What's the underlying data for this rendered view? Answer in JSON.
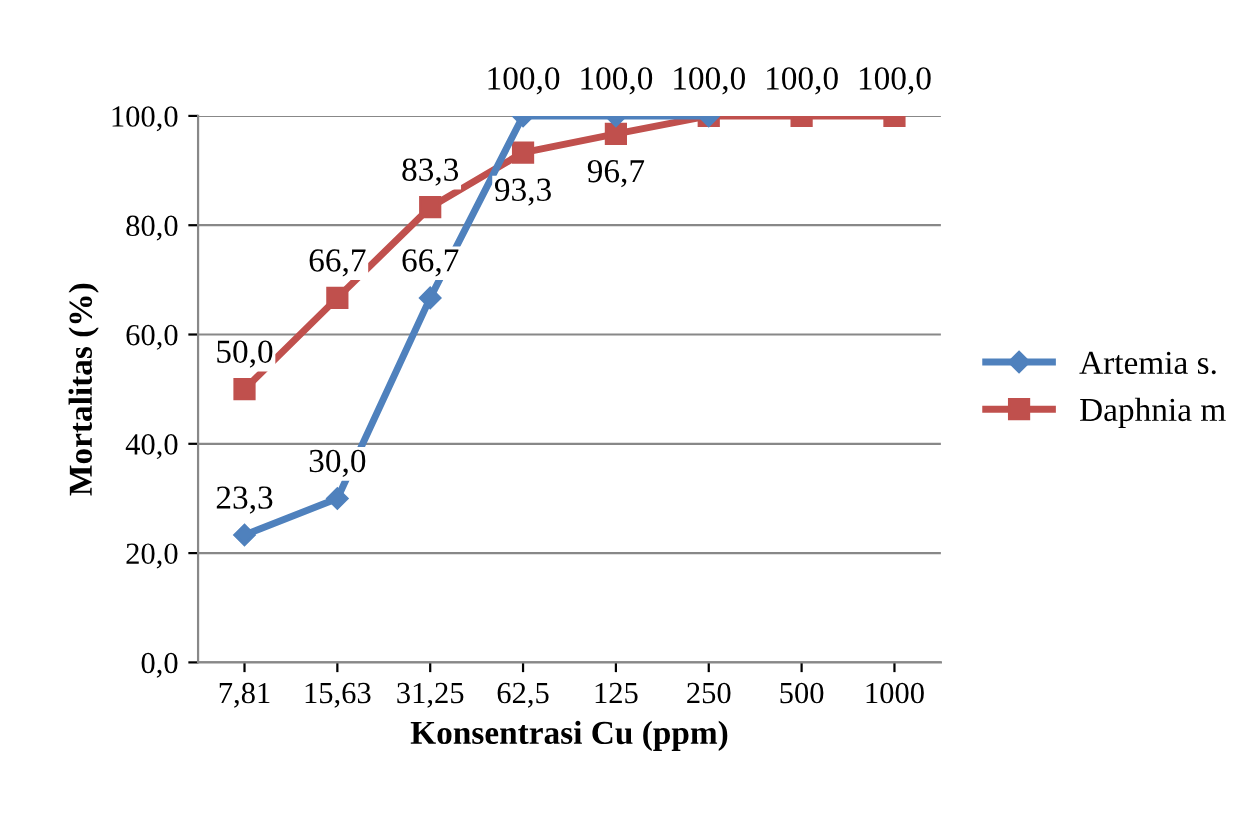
{
  "chart_data": {
    "type": "line",
    "xlabel": "Konsentrasi Cu (ppm)",
    "ylabel": "Mortalitas (%)",
    "categories": [
      "7,81",
      "15,63",
      "31,25",
      "62,5",
      "125",
      "250",
      "500",
      "1000"
    ],
    "series": [
      {
        "name": "Artemia s.",
        "color": "#4f81bd",
        "marker": "diamond",
        "values": [
          23.3,
          30.0,
          66.7,
          100.0,
          100.0,
          100.0,
          null,
          null
        ],
        "value_labels": [
          "23,3",
          "30,0",
          "66,7",
          "100,0",
          "100,0",
          null,
          null,
          null
        ]
      },
      {
        "name": "Daphnia m",
        "color": "#c0504d",
        "marker": "square",
        "values": [
          50.0,
          66.7,
          83.3,
          93.3,
          96.7,
          100.0,
          100.0,
          100.0
        ],
        "value_labels": [
          "50,0",
          "66,7",
          "83,3",
          "93,3",
          "96,7",
          "100,0",
          "100,0",
          "100,0"
        ]
      }
    ],
    "ylim": [
      0,
      100
    ],
    "yticks": [
      {
        "value": 0,
        "label": "0,0"
      },
      {
        "value": 20,
        "label": "20,0"
      },
      {
        "value": 40,
        "label": "40,0"
      },
      {
        "value": 60,
        "label": "60,0"
      },
      {
        "value": 80,
        "label": "80,0"
      },
      {
        "value": 100,
        "label": "100,0"
      }
    ],
    "grid": "y",
    "legend": "right",
    "line_style": "solid"
  }
}
